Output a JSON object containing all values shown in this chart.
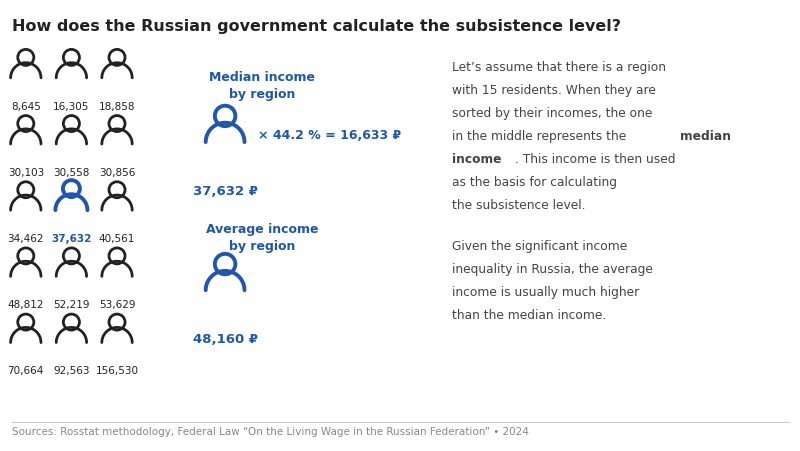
{
  "title": "How does the Russian government calculate the subsistence level?",
  "background_color": "#ffffff",
  "title_fontsize": 11.5,
  "title_color": "#222222",
  "people_grid": {
    "values": [
      [
        8645,
        16305,
        18858
      ],
      [
        30103,
        30558,
        30856
      ],
      [
        34462,
        37632,
        40561
      ],
      [
        48812,
        52219,
        53629
      ],
      [
        70664,
        92563,
        156530
      ]
    ],
    "highlight_row": 2,
    "highlight_col": 1,
    "normal_color": "#222222",
    "highlight_color": "#2056ae"
  },
  "median_label": "Median income\nby region",
  "median_value": "37,632 ₽",
  "median_formula": "× 44.2 % = 16,633 ₽",
  "average_label": "Average income\nby region",
  "average_value": "48,160 ₽",
  "blue_color": "#2056ae",
  "text_color": "#444444",
  "source_text": "Sources: Rosstat methodology, Federal Law “On the Living Wage in the Russian Federation” • 2024",
  "source_color": "#888888",
  "source_fontsize": 7.5
}
